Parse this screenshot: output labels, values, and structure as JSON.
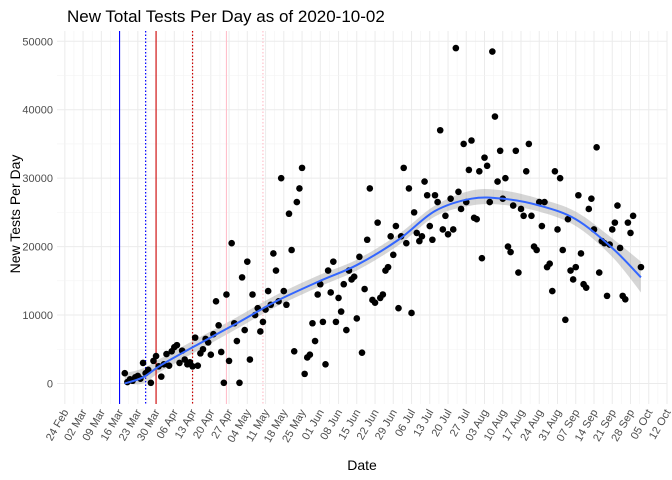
{
  "chart_data": {
    "type": "scatter",
    "title": "New Total Tests Per Day as of 2020-10-02",
    "xlabel": "Date",
    "ylabel": "New Tests Per Day",
    "xlim": [
      "2020-02-21",
      "2020-10-12"
    ],
    "ylim": [
      -3000,
      51500
    ],
    "grid": true,
    "legend": "none",
    "x_ticks": [
      "24 Feb",
      "02 Mar",
      "09 Mar",
      "16 Mar",
      "23 Mar",
      "30 Mar",
      "06 Apr",
      "13 Apr",
      "20 Apr",
      "27 Apr",
      "04 May",
      "11 May",
      "18 May",
      "25 May",
      "01 Jun",
      "08 Jun",
      "15 Jun",
      "22 Jun",
      "29 Jun",
      "06 Jul",
      "13 Jul",
      "20 Jul",
      "27 Jul",
      "03 Aug",
      "10 Aug",
      "17 Aug",
      "24 Aug",
      "31 Aug",
      "07 Sep",
      "14 Sep",
      "21 Sep",
      "28 Sep",
      "05 Oct",
      "12 Oct"
    ],
    "y_ticks": [
      "0",
      "10000",
      "20000",
      "30000",
      "40000",
      "50000"
    ],
    "colors": {
      "points": "#000000",
      "smooth": "#3366ff",
      "ribbon": "#999999",
      "line_blue": "#0000ff",
      "line_red": "#cc0000",
      "line_pink": "#ffc0cb"
    },
    "reference_lines": [
      {
        "date": "2020-03-16",
        "color": "#0000ff",
        "style": "solid"
      },
      {
        "date": "2020-03-26",
        "color": "#0000ff",
        "style": "dotted"
      },
      {
        "date": "2020-03-30",
        "color": "#cc0000",
        "style": "solid"
      },
      {
        "date": "2020-04-13",
        "color": "#cc0000",
        "style": "dotted"
      },
      {
        "date": "2020-04-26",
        "color": "#ffc0cb",
        "style": "solid"
      },
      {
        "date": "2020-05-10",
        "color": "#ffc0cb",
        "style": "dotted"
      }
    ],
    "points": [
      [
        "2020-03-18",
        1500
      ],
      [
        "2020-03-19",
        200
      ],
      [
        "2020-03-20",
        600
      ],
      [
        "2020-03-21",
        400
      ],
      [
        "2020-03-22",
        900
      ],
      [
        "2020-03-23",
        1100
      ],
      [
        "2020-03-24",
        700
      ],
      [
        "2020-03-25",
        3000
      ],
      [
        "2020-03-26",
        1500
      ],
      [
        "2020-03-27",
        2000
      ],
      [
        "2020-03-28",
        100
      ],
      [
        "2020-03-29",
        3300
      ],
      [
        "2020-03-30",
        4000
      ],
      [
        "2020-03-31",
        2500
      ],
      [
        "2020-04-01",
        1000
      ],
      [
        "2020-04-02",
        2800
      ],
      [
        "2020-04-03",
        4300
      ],
      [
        "2020-04-04",
        2600
      ],
      [
        "2020-04-05",
        4700
      ],
      [
        "2020-04-06",
        5300
      ],
      [
        "2020-04-07",
        5600
      ],
      [
        "2020-04-08",
        3000
      ],
      [
        "2020-04-09",
        4800
      ],
      [
        "2020-04-10",
        3500
      ],
      [
        "2020-04-11",
        2800
      ],
      [
        "2020-04-12",
        3100
      ],
      [
        "2020-04-13",
        2500
      ],
      [
        "2020-04-14",
        6700
      ],
      [
        "2020-04-15",
        2600
      ],
      [
        "2020-04-16",
        4400
      ],
      [
        "2020-04-17",
        5000
      ],
      [
        "2020-04-18",
        6500
      ],
      [
        "2020-04-19",
        6000
      ],
      [
        "2020-04-20",
        4200
      ],
      [
        "2020-04-21",
        7200
      ],
      [
        "2020-04-22",
        12000
      ],
      [
        "2020-04-23",
        8500
      ],
      [
        "2020-04-24",
        4600
      ],
      [
        "2020-04-25",
        100
      ],
      [
        "2020-04-26",
        13000
      ],
      [
        "2020-04-27",
        3300
      ],
      [
        "2020-04-28",
        20500
      ],
      [
        "2020-04-29",
        8800
      ],
      [
        "2020-04-30",
        6200
      ],
      [
        "2020-05-01",
        100
      ],
      [
        "2020-05-02",
        15500
      ],
      [
        "2020-05-03",
        7800
      ],
      [
        "2020-05-04",
        17800
      ],
      [
        "2020-05-05",
        3500
      ],
      [
        "2020-05-06",
        13000
      ],
      [
        "2020-05-07",
        10000
      ],
      [
        "2020-05-08",
        11000
      ],
      [
        "2020-05-09",
        7600
      ],
      [
        "2020-05-10",
        9000
      ],
      [
        "2020-05-11",
        10800
      ],
      [
        "2020-05-12",
        13500
      ],
      [
        "2020-05-13",
        11500
      ],
      [
        "2020-05-14",
        19000
      ],
      [
        "2020-05-15",
        16500
      ],
      [
        "2020-05-16",
        12000
      ],
      [
        "2020-05-17",
        30000
      ],
      [
        "2020-05-18",
        13500
      ],
      [
        "2020-05-19",
        11500
      ],
      [
        "2020-05-20",
        24800
      ],
      [
        "2020-05-21",
        19500
      ],
      [
        "2020-05-22",
        4700
      ],
      [
        "2020-05-23",
        26500
      ],
      [
        "2020-05-24",
        28500
      ],
      [
        "2020-05-25",
        31500
      ],
      [
        "2020-05-26",
        1400
      ],
      [
        "2020-05-27",
        3800
      ],
      [
        "2020-05-28",
        4200
      ],
      [
        "2020-05-29",
        8800
      ],
      [
        "2020-05-30",
        6200
      ],
      [
        "2020-05-31",
        13000
      ],
      [
        "2020-06-01",
        14500
      ],
      [
        "2020-06-02",
        9000
      ],
      [
        "2020-06-03",
        2800
      ],
      [
        "2020-06-04",
        16500
      ],
      [
        "2020-06-05",
        13300
      ],
      [
        "2020-06-06",
        17800
      ],
      [
        "2020-06-07",
        9000
      ],
      [
        "2020-06-08",
        12500
      ],
      [
        "2020-06-09",
        10500
      ],
      [
        "2020-06-10",
        14500
      ],
      [
        "2020-06-11",
        7800
      ],
      [
        "2020-06-12",
        16500
      ],
      [
        "2020-06-13",
        15200
      ],
      [
        "2020-06-14",
        15600
      ],
      [
        "2020-06-15",
        9500
      ],
      [
        "2020-06-16",
        18500
      ],
      [
        "2020-06-17",
        4500
      ],
      [
        "2020-06-18",
        13800
      ],
      [
        "2020-06-19",
        21000
      ],
      [
        "2020-06-20",
        28500
      ],
      [
        "2020-06-21",
        12200
      ],
      [
        "2020-06-22",
        11800
      ],
      [
        "2020-06-23",
        23500
      ],
      [
        "2020-06-24",
        12500
      ],
      [
        "2020-06-25",
        13000
      ],
      [
        "2020-06-26",
        16500
      ],
      [
        "2020-06-27",
        17000
      ],
      [
        "2020-06-28",
        21500
      ],
      [
        "2020-06-29",
        18800
      ],
      [
        "2020-06-30",
        23000
      ],
      [
        "2020-07-01",
        11000
      ],
      [
        "2020-07-02",
        21500
      ],
      [
        "2020-07-03",
        31500
      ],
      [
        "2020-07-04",
        20500
      ],
      [
        "2020-07-05",
        28500
      ],
      [
        "2020-07-06",
        10300
      ],
      [
        "2020-07-07",
        25000
      ],
      [
        "2020-07-08",
        22000
      ],
      [
        "2020-07-09",
        20800
      ],
      [
        "2020-07-10",
        21500
      ],
      [
        "2020-07-11",
        29500
      ],
      [
        "2020-07-12",
        27500
      ],
      [
        "2020-07-13",
        23000
      ],
      [
        "2020-07-14",
        21000
      ],
      [
        "2020-07-15",
        27500
      ],
      [
        "2020-07-16",
        26500
      ],
      [
        "2020-07-17",
        37000
      ],
      [
        "2020-07-18",
        22500
      ],
      [
        "2020-07-19",
        24500
      ],
      [
        "2020-07-20",
        21800
      ],
      [
        "2020-07-21",
        27000
      ],
      [
        "2020-07-22",
        22500
      ],
      [
        "2020-07-23",
        49000
      ],
      [
        "2020-07-24",
        28000
      ],
      [
        "2020-07-25",
        25500
      ],
      [
        "2020-07-26",
        35000
      ],
      [
        "2020-07-27",
        26500
      ],
      [
        "2020-07-28",
        31200
      ],
      [
        "2020-07-29",
        35500
      ],
      [
        "2020-07-30",
        24200
      ],
      [
        "2020-07-31",
        24000
      ],
      [
        "2020-08-01",
        31000
      ],
      [
        "2020-08-02",
        18300
      ],
      [
        "2020-08-03",
        33000
      ],
      [
        "2020-08-04",
        31800
      ],
      [
        "2020-08-05",
        26500
      ],
      [
        "2020-08-06",
        48500
      ],
      [
        "2020-08-07",
        39000
      ],
      [
        "2020-08-08",
        29500
      ],
      [
        "2020-08-09",
        34000
      ],
      [
        "2020-08-10",
        27000
      ],
      [
        "2020-08-11",
        30000
      ],
      [
        "2020-08-12",
        20000
      ],
      [
        "2020-08-13",
        19200
      ],
      [
        "2020-08-14",
        26000
      ],
      [
        "2020-08-15",
        34000
      ],
      [
        "2020-08-16",
        16200
      ],
      [
        "2020-08-17",
        25500
      ],
      [
        "2020-08-18",
        24500
      ],
      [
        "2020-08-19",
        31000
      ],
      [
        "2020-08-20",
        35000
      ],
      [
        "2020-08-21",
        24500
      ],
      [
        "2020-08-22",
        20000
      ],
      [
        "2020-08-23",
        19500
      ],
      [
        "2020-08-24",
        26500
      ],
      [
        "2020-08-25",
        23000
      ],
      [
        "2020-08-26",
        26500
      ],
      [
        "2020-08-27",
        17000
      ],
      [
        "2020-08-28",
        17500
      ],
      [
        "2020-08-29",
        13500
      ],
      [
        "2020-08-30",
        31000
      ],
      [
        "2020-08-31",
        22500
      ],
      [
        "2020-09-01",
        30000
      ],
      [
        "2020-09-02",
        19500
      ],
      [
        "2020-09-03",
        9300
      ],
      [
        "2020-09-04",
        24000
      ],
      [
        "2020-09-05",
        16500
      ],
      [
        "2020-09-06",
        15200
      ],
      [
        "2020-09-07",
        17000
      ],
      [
        "2020-09-08",
        27500
      ],
      [
        "2020-09-09",
        19000
      ],
      [
        "2020-09-10",
        14500
      ],
      [
        "2020-09-11",
        14000
      ],
      [
        "2020-09-12",
        25500
      ],
      [
        "2020-09-13",
        27000
      ],
      [
        "2020-09-14",
        22500
      ],
      [
        "2020-09-15",
        34500
      ],
      [
        "2020-09-16",
        16200
      ],
      [
        "2020-09-17",
        20800
      ],
      [
        "2020-09-18",
        20500
      ],
      [
        "2020-09-19",
        12800
      ],
      [
        "2020-09-20",
        20300
      ],
      [
        "2020-09-21",
        22500
      ],
      [
        "2020-09-22",
        23500
      ],
      [
        "2020-09-23",
        26000
      ],
      [
        "2020-09-24",
        19800
      ],
      [
        "2020-09-25",
        12800
      ],
      [
        "2020-09-26",
        12300
      ],
      [
        "2020-09-27",
        23500
      ],
      [
        "2020-09-28",
        22000
      ],
      [
        "2020-09-29",
        24500
      ],
      [
        "2020-10-02",
        17000
      ]
    ],
    "smooth": [
      [
        "2020-03-18",
        0,
        0,
        1500
      ],
      [
        "2020-03-25",
        900,
        0,
        2200
      ],
      [
        "2020-04-01",
        2700,
        1800,
        3700
      ],
      [
        "2020-04-15",
        5700,
        4800,
        6600
      ],
      [
        "2020-05-01",
        9000,
        8200,
        9900
      ],
      [
        "2020-05-15",
        12000,
        11200,
        12900
      ],
      [
        "2020-06-01",
        15000,
        14200,
        15900
      ],
      [
        "2020-06-15",
        17300,
        16500,
        18100
      ],
      [
        "2020-07-01",
        21000,
        20200,
        21800
      ],
      [
        "2020-07-15",
        25200,
        24400,
        26000
      ],
      [
        "2020-07-29",
        27000,
        26000,
        28200
      ],
      [
        "2020-08-10",
        27000,
        26100,
        28200
      ],
      [
        "2020-08-24",
        26000,
        25100,
        27000
      ],
      [
        "2020-09-07",
        24000,
        23000,
        25100
      ],
      [
        "2020-09-21",
        19800,
        18500,
        21200
      ],
      [
        "2020-10-02",
        15500,
        13300,
        17800
      ]
    ]
  }
}
